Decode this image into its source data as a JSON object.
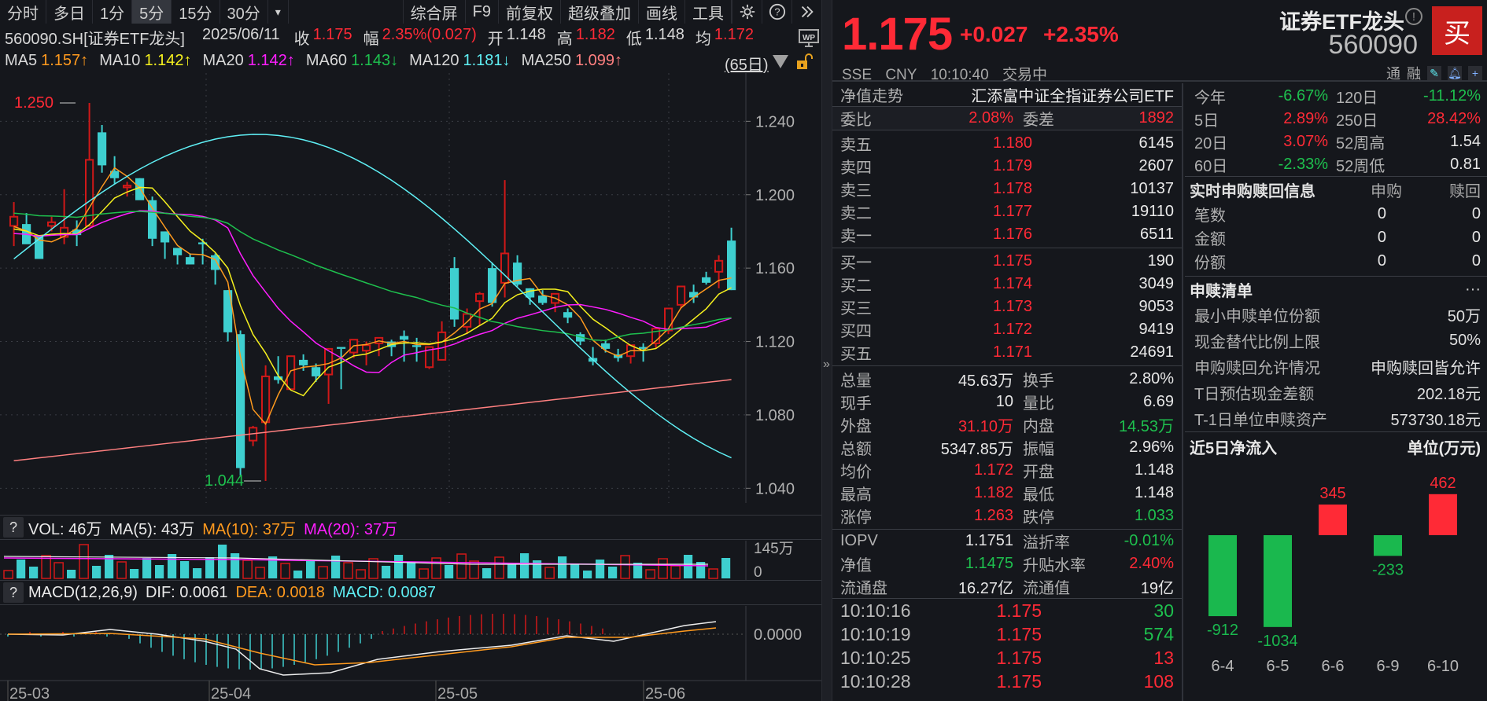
{
  "toolbar": {
    "tabs": [
      "分时",
      "多日",
      "1分",
      "5分",
      "15分",
      "30分"
    ],
    "active_tab": "5分",
    "more_label": "▾",
    "actions": [
      "综合屏",
      "F9",
      "前复权",
      "超级叠加",
      "画线",
      "工具"
    ],
    "icons": [
      "gear-icon",
      "help-icon",
      "expand-icon"
    ]
  },
  "info": {
    "symbol": "560090.SH[证券ETF龙头]",
    "date": "2025/06/11",
    "close_label": "收",
    "close": "1.175",
    "amp_label": "幅",
    "amp": "2.35%(0.027)",
    "open_label": "开",
    "open": "1.148",
    "high_label": "高",
    "high": "1.182",
    "low_label": "低",
    "low": "1.148",
    "avg_label": "均",
    "avg": "1.172"
  },
  "ma": [
    {
      "label": "MA5",
      "value": "1.157↑",
      "color": "#ff9a1e"
    },
    {
      "label": "MA10",
      "value": "1.142↑",
      "color": "#f5f01e"
    },
    {
      "label": "MA20",
      "value": "1.142↑",
      "color": "#ff1eff"
    },
    {
      "label": "MA60",
      "value": "1.143↓",
      "color": "#1ec04e"
    },
    {
      "label": "MA120",
      "value": "1.181↓",
      "color": "#5ff0f5"
    },
    {
      "label": "MA250",
      "value": "1.099↑",
      "color": "#ff8080"
    }
  ],
  "period": "(65日)",
  "chart_data": [
    {
      "type": "candlestick",
      "title": "560090.SH 5分 K线",
      "yaxis_ticks": [
        "1.240",
        "1.200",
        "1.160",
        "1.120",
        "1.080",
        "1.040"
      ],
      "ylim": [
        1.035,
        1.262
      ],
      "xaxis_ticks": [
        "25-03",
        "25-04",
        "25-05",
        "25-06"
      ],
      "annotations": [
        {
          "text": "1.250",
          "type": "max"
        },
        {
          "text": "1.044",
          "type": "min"
        }
      ],
      "candles": [
        [
          1.183,
          1.196,
          1.188,
          1.172
        ],
        [
          1.184,
          1.19,
          1.173,
          1.174
        ],
        [
          1.178,
          1.178,
          1.165,
          1.168
        ],
        [
          1.183,
          1.188,
          1.185,
          1.18
        ],
        [
          1.177,
          1.203,
          1.182,
          1.173
        ],
        [
          1.181,
          1.186,
          1.178,
          1.172
        ],
        [
          1.183,
          1.25,
          1.219,
          1.183
        ],
        [
          1.234,
          1.238,
          1.216,
          1.212
        ],
        [
          1.213,
          1.221,
          1.209,
          1.206
        ],
        [
          1.204,
          1.207,
          1.205,
          1.199
        ],
        [
          1.209,
          1.209,
          1.197,
          1.198
        ],
        [
          1.197,
          1.199,
          1.176,
          1.172
        ],
        [
          1.18,
          1.18,
          1.174,
          1.165
        ],
        [
          1.171,
          1.171,
          1.167,
          1.162
        ],
        [
          1.166,
          1.168,
          1.162,
          1.162
        ],
        [
          1.174,
          1.176,
          1.173,
          1.162
        ],
        [
          1.167,
          1.168,
          1.159,
          1.151
        ],
        [
          1.148,
          1.148,
          1.125,
          1.12
        ],
        [
          1.124,
          1.126,
          1.051,
          1.047
        ],
        [
          1.066,
          1.074,
          1.073,
          1.063
        ],
        [
          1.076,
          1.107,
          1.101,
          1.044
        ],
        [
          1.101,
          1.112,
          1.099,
          1.097
        ],
        [
          1.094,
          1.111,
          1.112,
          1.096
        ],
        [
          1.11,
          1.113,
          1.107,
          1.104
        ],
        [
          1.106,
          1.108,
          1.101,
          1.098
        ],
        [
          1.102,
          1.102,
          1.116,
          1.086
        ],
        [
          1.117,
          1.116,
          1.116,
          1.094
        ],
        [
          1.114,
          1.117,
          1.121,
          1.111
        ],
        [
          1.115,
          1.12,
          1.118,
          1.107
        ],
        [
          1.119,
          1.12,
          1.122,
          1.112
        ],
        [
          1.12,
          1.121,
          1.117,
          1.112
        ],
        [
          1.123,
          1.126,
          1.121,
          1.109
        ],
        [
          1.118,
          1.122,
          1.117,
          1.109
        ],
        [
          1.106,
          1.114,
          1.117,
          1.105
        ],
        [
          1.11,
          1.131,
          1.125,
          1.11
        ],
        [
          1.16,
          1.166,
          1.132,
          1.128
        ],
        [
          1.128,
          1.138,
          1.135,
          1.124
        ],
        [
          1.142,
          1.147,
          1.146,
          1.129
        ],
        [
          1.16,
          1.163,
          1.141,
          1.139
        ],
        [
          1.152,
          1.208,
          1.168,
          1.144
        ],
        [
          1.163,
          1.167,
          1.151,
          1.15
        ],
        [
          1.149,
          1.149,
          1.144,
          1.14
        ],
        [
          1.145,
          1.148,
          1.141,
          1.14
        ],
        [
          1.141,
          1.145,
          1.146,
          1.136
        ],
        [
          1.136,
          1.138,
          1.133,
          1.13
        ],
        [
          1.124,
          1.125,
          1.12,
          1.118
        ],
        [
          1.111,
          1.117,
          1.109,
          1.107
        ],
        [
          1.119,
          1.121,
          1.116,
          1.114
        ],
        [
          1.113,
          1.116,
          1.111,
          1.109
        ],
        [
          1.112,
          1.116,
          1.118,
          1.108
        ],
        [
          1.117,
          1.119,
          1.116,
          1.109
        ],
        [
          1.119,
          1.125,
          1.127,
          1.116
        ],
        [
          1.126,
          1.13,
          1.138,
          1.124
        ],
        [
          1.14,
          1.147,
          1.15,
          1.138
        ],
        [
          1.147,
          1.151,
          1.144,
          1.141
        ],
        [
          1.155,
          1.158,
          1.152,
          1.151
        ],
        [
          1.158,
          1.167,
          1.164,
          1.149
        ],
        [
          1.175,
          1.182,
          1.148,
          1.148
        ]
      ],
      "ma_series_names": [
        "MA5",
        "MA10",
        "MA20",
        "MA60",
        "MA120",
        "MA250"
      ]
    },
    {
      "type": "bar",
      "title": "VOL",
      "yaxis_ticks": [
        "145万",
        "0"
      ],
      "legend": [
        "VOL: 46万",
        "MA(5): 43万",
        "MA(10): 37万",
        "MA(20): 37万"
      ]
    },
    {
      "type": "bar",
      "title": "MACD(12,26,9)",
      "yaxis_ticks": [
        "0.0000"
      ],
      "legend": [
        "DIF: 0.0061",
        "DEA: 0.0018",
        "MACD: 0.0087"
      ]
    },
    {
      "type": "bar",
      "title": "近5日净流入",
      "unit": "单位(万元)",
      "categories": [
        "6-4",
        "6-5",
        "6-6",
        "6-9",
        "6-10"
      ],
      "values": [
        -912,
        -1034,
        345,
        -233,
        462
      ]
    }
  ],
  "vol_panel": {
    "vol_label": "VOL: 46万",
    "ma5": "MA(5): 43万",
    "ma10": "MA(10): 37万",
    "ma20": "MA(20): 37万",
    "axis_top": "145万",
    "axis_zero": "0"
  },
  "macd_panel": {
    "title": "MACD(12,26,9)",
    "dif": "DIF: 0.0061",
    "dea": "DEA: 0.0018",
    "macd": "MACD: 0.0087",
    "axis_zero": "0.0000"
  },
  "quote": {
    "price": "1.175",
    "change": "+0.027",
    "change_pct": "+2.35%",
    "exchange": "SSE",
    "currency": "CNY",
    "time": "10:10:40",
    "status": "交易中",
    "name": "证券ETF龙头",
    "code": "560090",
    "buy_label": "买",
    "tags": [
      "通",
      "融"
    ]
  },
  "orderbook": {
    "nav_label": "净值走势",
    "fund_name": "汇添富中证全指证券公司ETF",
    "weibi_label": "委比",
    "weibi": "2.08%",
    "weicha_label": "委差",
    "weicha": "1892",
    "asks": [
      {
        "label": "卖五",
        "price": "1.180",
        "vol": "6145"
      },
      {
        "label": "卖四",
        "price": "1.179",
        "vol": "2607"
      },
      {
        "label": "卖三",
        "price": "1.178",
        "vol": "10137"
      },
      {
        "label": "卖二",
        "price": "1.177",
        "vol": "19110"
      },
      {
        "label": "卖一",
        "price": "1.176",
        "vol": "6511"
      }
    ],
    "bids": [
      {
        "label": "买一",
        "price": "1.175",
        "vol": "190"
      },
      {
        "label": "买二",
        "price": "1.174",
        "vol": "3049"
      },
      {
        "label": "买三",
        "price": "1.173",
        "vol": "9053"
      },
      {
        "label": "买四",
        "price": "1.172",
        "vol": "9419"
      },
      {
        "label": "买五",
        "price": "1.171",
        "vol": "24691"
      }
    ]
  },
  "stats": [
    {
      "a": "总量",
      "b": "45.63万",
      "bc": "white",
      "c": "换手",
      "d": "2.80%",
      "dc": "white"
    },
    {
      "a": "现手",
      "b": "10",
      "bc": "white",
      "c": "量比",
      "d": "6.69",
      "dc": "white"
    },
    {
      "a": "外盘",
      "b": "31.10万",
      "bc": "red",
      "c": "内盘",
      "d": "14.53万",
      "dc": "green"
    },
    {
      "a": "总额",
      "b": "5347.85万",
      "bc": "white",
      "c": "振幅",
      "d": "2.96%",
      "dc": "white"
    },
    {
      "a": "均价",
      "b": "1.172",
      "bc": "red",
      "c": "开盘",
      "d": "1.148",
      "dc": "white"
    },
    {
      "a": "最高",
      "b": "1.182",
      "bc": "red",
      "c": "最低",
      "d": "1.148",
      "dc": "white"
    },
    {
      "a": "涨停",
      "b": "1.263",
      "bc": "red",
      "c": "跌停",
      "d": "1.033",
      "dc": "green"
    }
  ],
  "stats2": [
    {
      "a": "IOPV",
      "b": "1.1751",
      "bc": "white",
      "c": "溢折率",
      "d": "-0.01%",
      "dc": "green"
    },
    {
      "a": "净值",
      "b": "1.1475",
      "bc": "green",
      "c": "升贴水率",
      "d": "2.40%",
      "dc": "red"
    },
    {
      "a": "流通盘",
      "b": "16.27亿",
      "bc": "white",
      "c": "流通值",
      "d": "19亿",
      "dc": "white"
    }
  ],
  "ticks": [
    {
      "time": "10:10:16",
      "price": "1.175",
      "vol": "30",
      "vc": "green"
    },
    {
      "time": "10:10:19",
      "price": "1.175",
      "vol": "574",
      "vc": "green"
    },
    {
      "time": "10:10:25",
      "price": "1.175",
      "vol": "13",
      "vc": "red"
    },
    {
      "time": "10:10:28",
      "price": "1.175",
      "vol": "108",
      "vc": "red"
    }
  ],
  "performance": [
    {
      "a": "今年",
      "b": "-6.67%",
      "bc": "green",
      "c": "120日",
      "d": "-11.12%",
      "dc": "green"
    },
    {
      "a": "5日",
      "b": "2.89%",
      "bc": "red",
      "c": "250日",
      "d": "28.42%",
      "dc": "red"
    },
    {
      "a": "20日",
      "b": "3.07%",
      "bc": "red",
      "c": "52周高",
      "d": "1.54",
      "dc": "white"
    },
    {
      "a": "60日",
      "b": "-2.33%",
      "bc": "green",
      "c": "52周低",
      "d": "0.81",
      "dc": "white"
    }
  ],
  "creation": {
    "title": "实时申购赎回信息",
    "col1": "申购",
    "col2": "赎回",
    "rows": [
      {
        "label": "笔数",
        "sub": "0",
        "red": "0"
      },
      {
        "label": "金额",
        "sub": "0",
        "red": "0"
      },
      {
        "label": "份额",
        "sub": "0",
        "red": "0"
      }
    ]
  },
  "pcf": {
    "title": "申赎清单",
    "more": "···",
    "rows": [
      {
        "k": "最小申赎单位份额",
        "v": "50万"
      },
      {
        "k": "现金替代比例上限",
        "v": "50%"
      },
      {
        "k": "申购赎回允许情况",
        "v": "申购赎回皆允许"
      },
      {
        "k": "T日预估现金差额",
        "v": "202.18元"
      },
      {
        "k": "T-1日单位申赎资产",
        "v": "573730.18元"
      }
    ]
  },
  "netflow": {
    "title": "近5日净流入",
    "unit": "单位(万元)"
  },
  "colors": {
    "up": "#ff2a36",
    "down": "#3ecfcf",
    "green": "#1ec04e",
    "bg": "#15171c"
  }
}
